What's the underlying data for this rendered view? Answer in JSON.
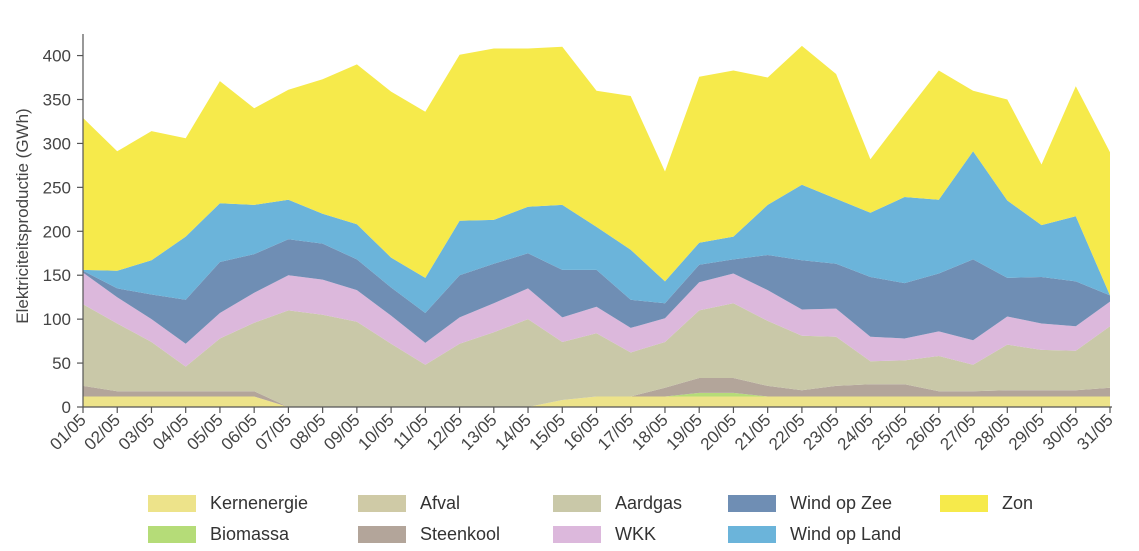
{
  "chart_data": {
    "type": "area",
    "stacked": true,
    "ylabel": "Elektriciteitsproductie (GWh)",
    "xlabel": "",
    "ylim": [
      0,
      420
    ],
    "yticks": [
      0,
      50,
      100,
      150,
      200,
      250,
      300,
      350,
      400
    ],
    "grid": false,
    "legend_position": "bottom",
    "categories": [
      "01/05",
      "02/05",
      "03/05",
      "04/05",
      "05/05",
      "06/05",
      "07/05",
      "08/05",
      "09/05",
      "10/05",
      "11/05",
      "12/05",
      "13/05",
      "14/05",
      "15/05",
      "16/05",
      "17/05",
      "18/05",
      "19/05",
      "20/05",
      "21/05",
      "22/05",
      "23/05",
      "24/05",
      "25/05",
      "26/05",
      "27/05",
      "28/05",
      "29/05",
      "30/05",
      "31/05"
    ],
    "series": [
      {
        "name": "Kernenergie",
        "color": "#ede38a",
        "values": [
          12,
          12,
          12,
          12,
          12,
          12,
          0,
          0,
          0,
          0,
          0,
          0,
          0,
          0,
          8,
          12,
          12,
          12,
          12,
          12,
          12,
          12,
          12,
          12,
          12,
          12,
          12,
          12,
          12,
          12,
          12
        ]
      },
      {
        "name": "Biomassa",
        "color": "#b5dc78",
        "values": [
          0,
          0,
          0,
          0,
          0,
          0,
          0,
          0,
          0,
          0,
          0,
          0,
          0,
          0,
          0,
          0,
          0,
          0,
          4,
          4,
          0,
          0,
          0,
          0,
          0,
          0,
          0,
          0,
          0,
          0,
          0
        ]
      },
      {
        "name": "Steenkool",
        "color": "#b3a59a",
        "values": [
          12,
          6,
          6,
          6,
          6,
          6,
          0,
          0,
          0,
          0,
          0,
          0,
          0,
          0,
          0,
          0,
          0,
          10,
          17,
          17,
          12,
          7,
          12,
          14,
          14,
          6,
          6,
          7,
          7,
          7,
          10
        ]
      },
      {
        "name": "Afval",
        "color": "#cfcaa6",
        "values": [
          0,
          0,
          0,
          0,
          0,
          0,
          0,
          0,
          0,
          0,
          0,
          0,
          0,
          0,
          0,
          0,
          0,
          0,
          0,
          0,
          0,
          0,
          0,
          0,
          0,
          0,
          0,
          0,
          0,
          0,
          0
        ]
      },
      {
        "name": "Aardgas",
        "color": "#c9c8a8",
        "values": [
          93,
          77,
          56,
          28,
          60,
          78,
          110,
          105,
          97,
          72,
          48,
          72,
          85,
          100,
          66,
          72,
          50,
          52,
          77,
          85,
          74,
          62,
          56,
          26,
          27,
          40,
          30,
          52,
          46,
          45,
          70
        ]
      },
      {
        "name": "WKK",
        "color": "#dcb8dc",
        "values": [
          36,
          30,
          26,
          26,
          29,
          34,
          40,
          40,
          36,
          32,
          25,
          30,
          33,
          35,
          28,
          30,
          28,
          27,
          32,
          34,
          35,
          30,
          32,
          28,
          25,
          28,
          28,
          32,
          30,
          28,
          28
        ]
      },
      {
        "name": "Wind op Zee",
        "color": "#6f8eb4",
        "values": [
          2,
          10,
          28,
          50,
          58,
          44,
          41,
          41,
          35,
          32,
          34,
          48,
          45,
          40,
          54,
          42,
          32,
          17,
          20,
          16,
          40,
          56,
          51,
          68,
          63,
          66,
          92,
          44,
          53,
          51,
          7
        ]
      },
      {
        "name": "Wind op Land",
        "color": "#6bb4da",
        "values": [
          1,
          20,
          39,
          72,
          67,
          56,
          45,
          34,
          40,
          34,
          40,
          62,
          50,
          53,
          74,
          49,
          57,
          25,
          25,
          26,
          57,
          86,
          74,
          73,
          98,
          84,
          123,
          88,
          59,
          74,
          0
        ]
      },
      {
        "name": "Zon",
        "color": "#f6ea4b",
        "values": [
          173,
          136,
          147,
          112,
          139,
          110,
          125,
          153,
          182,
          189,
          189,
          189,
          195,
          180,
          180,
          155,
          175,
          125,
          189,
          189,
          145,
          158,
          142,
          61,
          94,
          147,
          69,
          115,
          69,
          148,
          163
        ]
      }
    ]
  },
  "legend": {
    "items": [
      {
        "name": "Kernenergie",
        "color": "#ede38a"
      },
      {
        "name": "Afval",
        "color": "#cfcaa6"
      },
      {
        "name": "Aardgas",
        "color": "#c9c8a8"
      },
      {
        "name": "Wind op Zee",
        "color": "#6f8eb4"
      },
      {
        "name": "Zon",
        "color": "#f6ea4b"
      },
      {
        "name": "Biomassa",
        "color": "#b5dc78"
      },
      {
        "name": "Steenkool",
        "color": "#b3a59a"
      },
      {
        "name": "WKK",
        "color": "#dcb8dc"
      },
      {
        "name": "Wind op Land",
        "color": "#6bb4da"
      }
    ]
  }
}
